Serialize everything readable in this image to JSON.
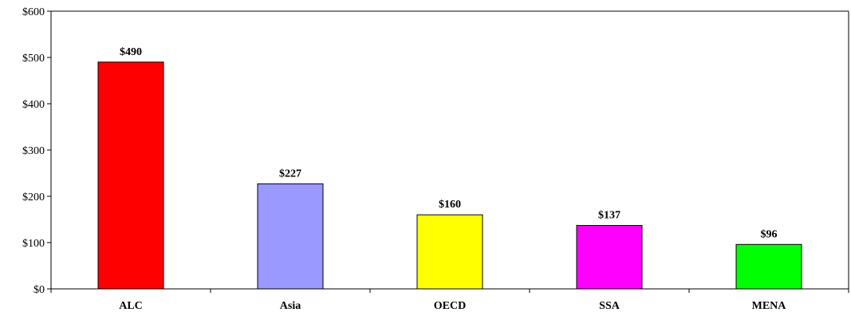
{
  "chart_data": {
    "type": "bar",
    "categories": [
      "ALC",
      "Asia",
      "OECD",
      "SSA",
      "MENA"
    ],
    "values": [
      490,
      227,
      160,
      137,
      96
    ],
    "data_labels": [
      "$490",
      "$227",
      "$160",
      "$137",
      "$96"
    ],
    "colors": [
      "#ff0000",
      "#9999ff",
      "#ffff00",
      "#ff00ff",
      "#00ff00"
    ],
    "yticks": [
      0,
      100,
      200,
      300,
      400,
      500,
      600
    ],
    "ytick_labels": [
      "$0",
      "$100",
      "$200",
      "$300",
      "$400",
      "$500",
      "$600"
    ],
    "ylim": [
      0,
      600
    ],
    "grid": false,
    "legend": "none",
    "title": "",
    "xlabel": "",
    "ylabel": ""
  }
}
